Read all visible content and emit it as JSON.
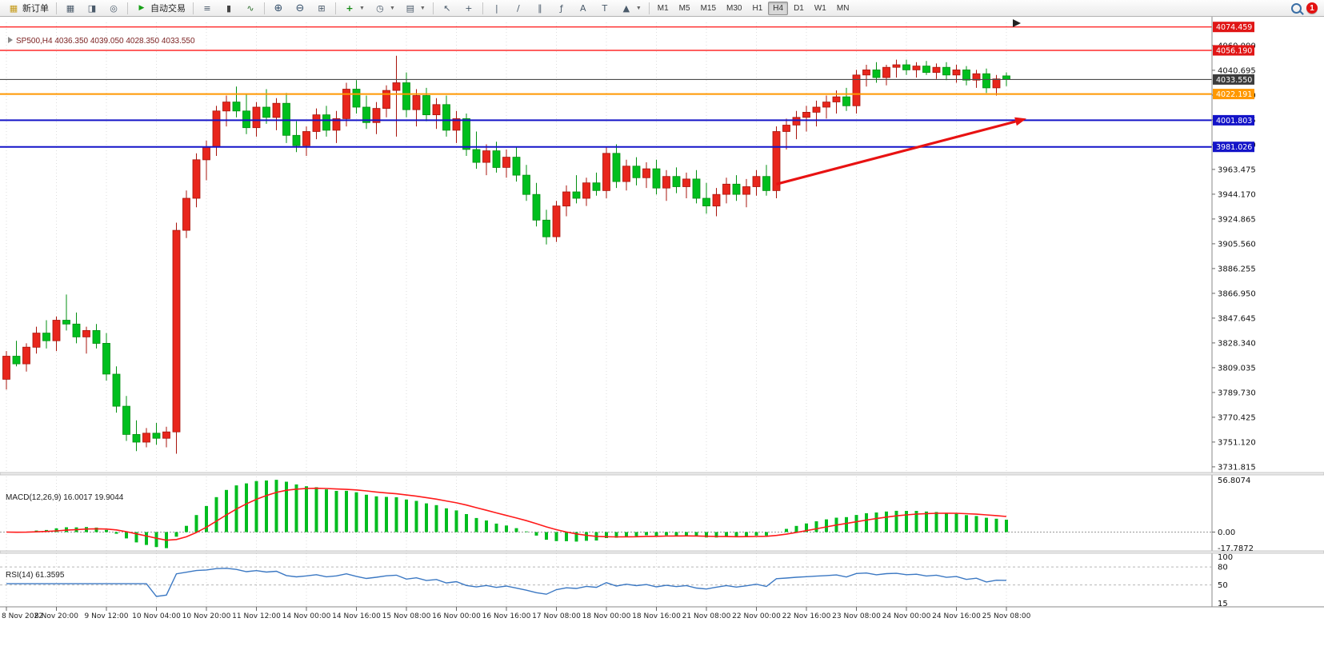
{
  "window": {
    "notification_count": "1"
  },
  "toolbar": {
    "new_order": {
      "label": "新订单",
      "icon_glyph": "▦"
    },
    "autotrade": {
      "label": "自动交易",
      "icon_glyph": "▶"
    },
    "groups": [
      {
        "name": "workspace",
        "icons": [
          {
            "name": "market-watch-icon",
            "glyph": "▦"
          },
          {
            "name": "data-window-icon",
            "glyph": "◨"
          },
          {
            "name": "navigator-icon",
            "glyph": "◎"
          }
        ]
      },
      {
        "name": "chart-types",
        "icons": [
          {
            "name": "bar-chart-icon",
            "glyph": "≡"
          },
          {
            "name": "candlestick-chart-icon",
            "glyph": "▮"
          },
          {
            "name": "line-chart-icon",
            "glyph": "∿"
          }
        ]
      },
      {
        "name": "zoom",
        "icons": [
          {
            "name": "zoom-in-icon",
            "glyph": "⊕"
          },
          {
            "name": "zoom-out-icon",
            "glyph": "⊖"
          },
          {
            "name": "grid-icon",
            "glyph": "⊞"
          }
        ]
      },
      {
        "name": "chart-tools",
        "icons": [
          {
            "name": "indicators-icon",
            "glyph": "+",
            "dd": true
          },
          {
            "name": "periods-icon",
            "glyph": "◷",
            "dd": true
          },
          {
            "name": "templates-icon",
            "glyph": "▤",
            "dd": true
          }
        ]
      },
      {
        "name": "cursor-tools",
        "icons": [
          {
            "name": "cursor-icon",
            "glyph": "↖"
          },
          {
            "name": "crosshair-icon",
            "glyph": "+"
          }
        ]
      },
      {
        "name": "draw-tools",
        "icons": [
          {
            "name": "vertical-line-icon",
            "glyph": "|"
          },
          {
            "name": "trendline-icon",
            "glyph": "/"
          },
          {
            "name": "channel-icon",
            "glyph": "∥"
          },
          {
            "name": "fibonacci-icon",
            "glyph": "ƒ"
          },
          {
            "name": "text-icon",
            "glyph": "A"
          },
          {
            "name": "label-icon",
            "glyph": "T"
          },
          {
            "name": "arrows-icon",
            "glyph": "▲",
            "dd": true
          }
        ]
      }
    ],
    "timeframes": {
      "options": [
        "M1",
        "M5",
        "M15",
        "M30",
        "H1",
        "H4",
        "D1",
        "W1",
        "MN"
      ],
      "active": "H4"
    }
  },
  "chart": {
    "symbol": "SP500",
    "period": "H4",
    "title_line": "SP500,H4  4036.350 4039.050 4028.350 4033.550",
    "ohlc": {
      "open": "4036.350",
      "high": "4039.050",
      "low": "4028.350",
      "close": "4033.550"
    }
  },
  "chart_data": {
    "type": "candlestick",
    "symbol": "SP500",
    "timeframe": "H4",
    "colors": {
      "bull": "#e8261c",
      "bull_border": "#a8140c",
      "bear": "#00bf1e",
      "bear_border": "#038f12"
    },
    "x_labels": [
      "8 Nov 2022",
      "8 Nov 20:00",
      "9 Nov 12:00",
      "10 Nov 04:00",
      "10 Nov 20:00",
      "11 Nov 12:00",
      "14 Nov 00:00",
      "14 Nov 16:00",
      "15 Nov 08:00",
      "16 Nov 00:00",
      "16 Nov 16:00",
      "17 Nov 08:00",
      "18 Nov 00:00",
      "18 Nov 16:00",
      "21 Nov 08:00",
      "22 Nov 00:00",
      "22 Nov 16:00",
      "23 Nov 08:00",
      "24 Nov 00:00",
      "24 Nov 16:00",
      "25 Nov 08:00"
    ],
    "candles_per_label": 5,
    "price_axis": {
      "min": 3728,
      "max": 4078,
      "ticks": [
        4060.0,
        4040.695,
        4021.39,
        4002.085,
        3982.78,
        3963.475,
        3944.17,
        3924.865,
        3905.56,
        3886.255,
        3866.95,
        3847.645,
        3828.34,
        3809.035,
        3789.73,
        3770.425,
        3751.12,
        3731.815
      ]
    },
    "candles": [
      [
        3800,
        3822,
        3792,
        3818
      ],
      [
        3818,
        3830,
        3810,
        3812
      ],
      [
        3812,
        3828,
        3806,
        3825
      ],
      [
        3825,
        3841,
        3820,
        3836
      ],
      [
        3836,
        3846,
        3824,
        3830
      ],
      [
        3830,
        3849,
        3822,
        3846
      ],
      [
        3846,
        3866,
        3838,
        3843
      ],
      [
        3843,
        3852,
        3828,
        3833
      ],
      [
        3833,
        3841,
        3820,
        3838
      ],
      [
        3838,
        3843,
        3824,
        3828
      ],
      [
        3828,
        3836,
        3799,
        3804
      ],
      [
        3804,
        3810,
        3774,
        3779
      ],
      [
        3779,
        3787,
        3752,
        3757
      ],
      [
        3757,
        3768,
        3744,
        3751
      ],
      [
        3751,
        3762,
        3747,
        3758
      ],
      [
        3758,
        3766,
        3749,
        3754
      ],
      [
        3754,
        3763,
        3747,
        3759
      ],
      [
        3759,
        3922,
        3742,
        3916
      ],
      [
        3916,
        3947,
        3910,
        3941
      ],
      [
        3941,
        3976,
        3934,
        3971
      ],
      [
        3971,
        3986,
        3955,
        3981
      ],
      [
        3981,
        4013,
        3974,
        4009
      ],
      [
        4009,
        4021,
        3997,
        4016
      ],
      [
        4016,
        4028,
        4004,
        4009
      ],
      [
        4009,
        4022,
        3991,
        3996
      ],
      [
        3996,
        4016,
        3989,
        4012
      ],
      [
        4012,
        4026,
        3999,
        4004
      ],
      [
        4004,
        4019,
        3994,
        4015
      ],
      [
        4015,
        4023,
        3984,
        3990
      ],
      [
        3990,
        4001,
        3977,
        3982
      ],
      [
        3982,
        3997,
        3974,
        3993
      ],
      [
        3993,
        4011,
        3987,
        4006
      ],
      [
        4006,
        4013,
        3989,
        3994
      ],
      [
        3994,
        4009,
        3984,
        4003
      ],
      [
        4003,
        4031,
        3997,
        4026
      ],
      [
        4026,
        4033,
        4007,
        4012
      ],
      [
        4012,
        4021,
        3995,
        4000
      ],
      [
        4000,
        4016,
        3991,
        4011
      ],
      [
        4011,
        4029,
        4004,
        4025
      ],
      [
        4025,
        4052,
        3989,
        4031
      ],
      [
        4031,
        4039,
        4004,
        4010
      ],
      [
        4010,
        4026,
        3997,
        4021
      ],
      [
        4021,
        4027,
        4001,
        4006
      ],
      [
        4006,
        4019,
        3995,
        4014
      ],
      [
        4014,
        4021,
        3989,
        3994
      ],
      [
        3994,
        4009,
        3984,
        4003
      ],
      [
        4003,
        4007,
        3974,
        3979
      ],
      [
        3979,
        3993,
        3964,
        3969
      ],
      [
        3969,
        3983,
        3959,
        3978
      ],
      [
        3978,
        3985,
        3961,
        3965
      ],
      [
        3965,
        3979,
        3957,
        3973
      ],
      [
        3973,
        3981,
        3954,
        3959
      ],
      [
        3959,
        3967,
        3939,
        3944
      ],
      [
        3944,
        3953,
        3919,
        3924
      ],
      [
        3924,
        3932,
        3905,
        3911
      ],
      [
        3911,
        3939,
        3907,
        3935
      ],
      [
        3935,
        3951,
        3927,
        3946
      ],
      [
        3946,
        3959,
        3937,
        3941
      ],
      [
        3941,
        3957,
        3935,
        3953
      ],
      [
        3953,
        3961,
        3943,
        3947
      ],
      [
        3947,
        3981,
        3941,
        3976
      ],
      [
        3976,
        3983,
        3949,
        3954
      ],
      [
        3954,
        3971,
        3947,
        3966
      ],
      [
        3966,
        3973,
        3951,
        3957
      ],
      [
        3957,
        3969,
        3949,
        3964
      ],
      [
        3964,
        3971,
        3944,
        3949
      ],
      [
        3949,
        3963,
        3939,
        3958
      ],
      [
        3958,
        3965,
        3945,
        3950
      ],
      [
        3950,
        3961,
        3941,
        3956
      ],
      [
        3956,
        3963,
        3937,
        3941
      ],
      [
        3941,
        3953,
        3929,
        3935
      ],
      [
        3935,
        3949,
        3927,
        3944
      ],
      [
        3944,
        3957,
        3937,
        3952
      ],
      [
        3952,
        3959,
        3939,
        3944
      ],
      [
        3944,
        3956,
        3934,
        3950
      ],
      [
        3950,
        3963,
        3943,
        3958
      ],
      [
        3958,
        3967,
        3943,
        3947
      ],
      [
        3947,
        3997,
        3941,
        3993
      ],
      [
        3993,
        4003,
        3979,
        3998
      ],
      [
        3998,
        4009,
        3987,
        4004
      ],
      [
        4004,
        4013,
        3993,
        4008
      ],
      [
        4008,
        4017,
        3997,
        4012
      ],
      [
        4012,
        4021,
        4003,
        4016
      ],
      [
        4016,
        4025,
        4007,
        4020
      ],
      [
        4020,
        4027,
        4009,
        4013
      ],
      [
        4013,
        4041,
        4007,
        4037
      ],
      [
        4037,
        4045,
        4028,
        4041
      ],
      [
        4041,
        4047,
        4031,
        4035
      ],
      [
        4035,
        4045,
        4029,
        4043
      ],
      [
        4043,
        4049,
        4035,
        4045
      ],
      [
        4045,
        4049,
        4037,
        4041
      ],
      [
        4041,
        4047,
        4035,
        4044
      ],
      [
        4044,
        4048,
        4037,
        4039
      ],
      [
        4039,
        4046,
        4034,
        4043
      ],
      [
        4043,
        4047,
        4033,
        4037
      ],
      [
        4037,
        4045,
        4031,
        4041
      ],
      [
        4041,
        4044,
        4029,
        4033
      ],
      [
        4033,
        4041,
        4027,
        4038
      ],
      [
        4038,
        4042,
        4023,
        4027
      ],
      [
        4027,
        4037,
        4021,
        4034
      ],
      [
        4036.35,
        4039.05,
        4028.35,
        4033.55
      ]
    ],
    "levels": [
      {
        "price": 4074.459,
        "label": "4074.459",
        "color": "#ff2a2a",
        "badge": "#e01616",
        "width": 1.4
      },
      {
        "price": 4056.19,
        "label": "4056.190",
        "color": "#ff2a2a",
        "badge": "#e01616",
        "width": 1.4
      },
      {
        "price": 4033.55,
        "label": "4033.550",
        "color": "#4a4a4a",
        "badge": "#3c3c3c",
        "width": 1.1
      },
      {
        "price": 4022.191,
        "label": "4022.191",
        "color": "#ff9800",
        "badge": "#ff9800",
        "width": 2
      },
      {
        "price": 4001.803,
        "label": "4001.803",
        "color": "#1414c8",
        "badge": "#1414c8",
        "width": 2
      },
      {
        "price": 3981.026,
        "label": "3981.026",
        "color": "#1414c8",
        "badge": "#1414c8",
        "width": 2
      }
    ],
    "arrow": {
      "i1": 77,
      "p1": 3952,
      "i2": 102,
      "p2": 4003,
      "color": "#e81212"
    },
    "indicators": {
      "macd": {
        "label": "MACD(12,26,9)",
        "values_text": "16.0017 19.9044",
        "axis_max": 56.8074,
        "axis_min": -17.7872,
        "axis_labels": [
          "56.8074",
          "0.00",
          "-17.7872"
        ],
        "histogram_color": "#00bd1f",
        "signal_color": "#ff1a1a"
      },
      "rsi": {
        "label": "RSI(14)",
        "values_text": "61.3595",
        "axis_labels": [
          "100",
          "80",
          "50",
          "15"
        ],
        "scale_min": 15,
        "scale_max": 100,
        "levels": [
          80,
          50
        ],
        "color": "#3b78c3"
      }
    }
  }
}
